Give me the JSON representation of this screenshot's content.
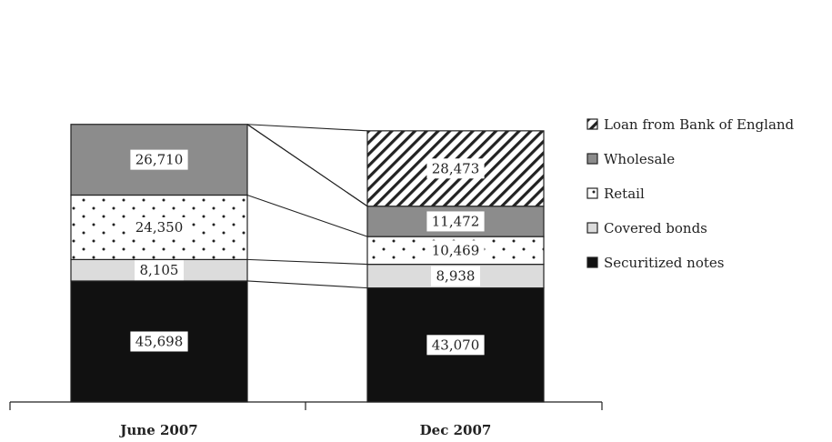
{
  "chart_data": {
    "type": "bar",
    "stacked": true,
    "categories": [
      "June 2007",
      "Dec 2007"
    ],
    "series": [
      {
        "name": "Securitized notes",
        "values": [
          45698,
          43070
        ],
        "color": "#111111",
        "pattern": "solid"
      },
      {
        "name": "Covered bonds",
        "values": [
          8105,
          8938
        ],
        "color": "#dcdcdc",
        "pattern": "solid"
      },
      {
        "name": "Retail",
        "values": [
          24350,
          10469
        ],
        "color": "#ffffff",
        "pattern": "dots"
      },
      {
        "name": "Wholesale",
        "values": [
          26710,
          11472
        ],
        "color": "#8c8c8c",
        "pattern": "solid"
      },
      {
        "name": "Loan from Bank of England",
        "values": [
          null,
          28473
        ],
        "color": "#ffffff",
        "pattern": "diagonal-hatch"
      }
    ],
    "data_labels": [
      [
        "45,698",
        "43,070"
      ],
      [
        "8,105",
        "8,938"
      ],
      [
        "24,350",
        "10,469"
      ],
      [
        "26,710",
        "11,472"
      ],
      [
        "",
        "28,473"
      ]
    ],
    "legend_order": [
      "Loan from Bank of England",
      "Wholesale",
      "Retail",
      "Covered bonds",
      "Securitized notes"
    ],
    "legend_position": "right",
    "grid": false
  }
}
